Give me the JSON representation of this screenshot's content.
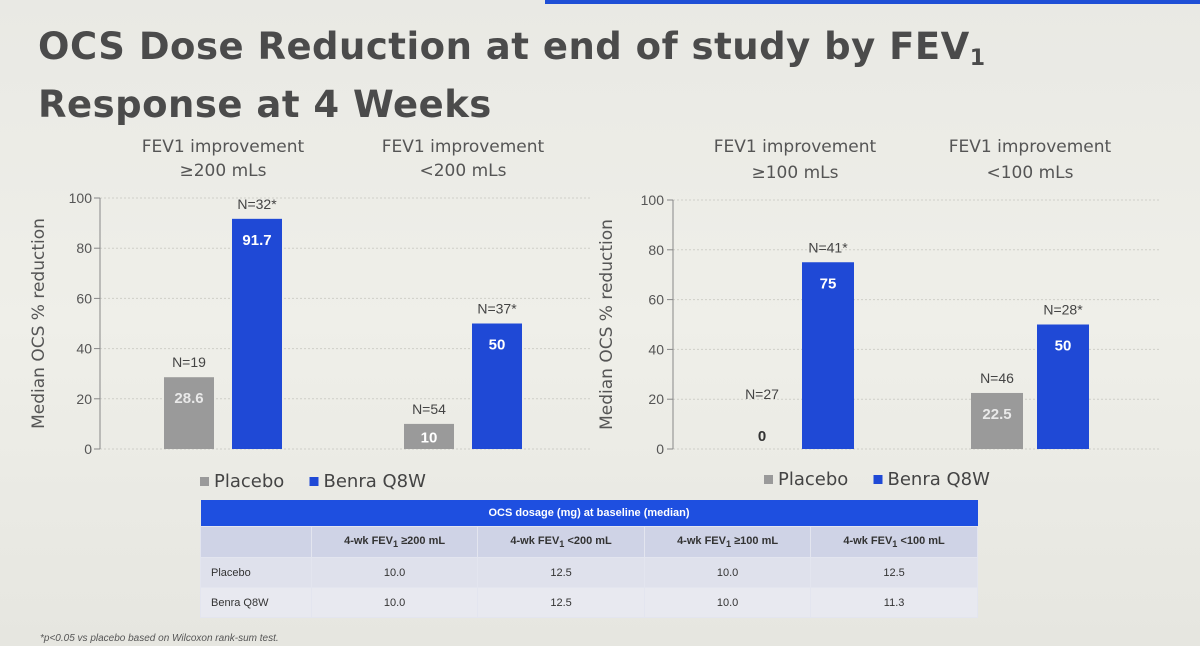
{
  "title_line1": "OCS Dose Reduction at end of study by FEV",
  "title_sub": "1",
  "title_line2": "Response at 4 Weeks",
  "chart_data": [
    {
      "type": "bar",
      "ylabel": "Median OCS % reduction",
      "ylim": [
        0,
        100
      ],
      "yticks": [
        0,
        20,
        40,
        60,
        80,
        100
      ],
      "grid": true,
      "legend": "bottom",
      "groups": [
        {
          "label_line1": "FEV1 improvement",
          "label_line2": "≥200 mLs",
          "bars": [
            {
              "series": "Placebo",
              "value": 28.6,
              "label": "28.6",
              "n": "N=19"
            },
            {
              "series": "Benra Q8W",
              "value": 91.7,
              "label": "91.7",
              "n": "N=32*"
            }
          ]
        },
        {
          "label_line1": "FEV1 improvement",
          "label_line2": "<200 mLs",
          "bars": [
            {
              "series": "Placebo",
              "value": 10,
              "label": "10",
              "n": "N=54"
            },
            {
              "series": "Benra Q8W",
              "value": 50,
              "label": "50",
              "n": "N=37*"
            }
          ]
        }
      ],
      "series": [
        {
          "name": "Placebo",
          "color": "#9a9a9a"
        },
        {
          "name": "Benra Q8W",
          "color": "#1f49d6"
        }
      ]
    },
    {
      "type": "bar",
      "ylabel": "Median OCS % reduction",
      "ylim": [
        0,
        100
      ],
      "yticks": [
        0,
        20,
        40,
        60,
        80,
        100
      ],
      "grid": true,
      "legend": "bottom",
      "groups": [
        {
          "label_line1": "FEV1 improvement",
          "label_line2": "≥100 mLs",
          "bars": [
            {
              "series": "Placebo",
              "value": 0,
              "label": "0",
              "n": "N=27"
            },
            {
              "series": "Benra Q8W",
              "value": 75,
              "label": "75",
              "n": "N=41*"
            }
          ]
        },
        {
          "label_line1": "FEV1 improvement",
          "label_line2": "<100 mLs",
          "bars": [
            {
              "series": "Placebo",
              "value": 22.5,
              "label": "22.5",
              "n": "N=46"
            },
            {
              "series": "Benra Q8W",
              "value": 50,
              "label": "50",
              "n": "N=28*"
            }
          ]
        }
      ],
      "series": [
        {
          "name": "Placebo",
          "color": "#9a9a9a"
        },
        {
          "name": "Benra Q8W",
          "color": "#1f49d6"
        }
      ]
    }
  ],
  "table": {
    "title": "OCS dosage (mg) at baseline (median)",
    "columns": [
      {
        "pre": "4-wk FEV",
        "sub": "1",
        "post": " ≥200 mL"
      },
      {
        "pre": "4-wk FEV",
        "sub": "1",
        "post": " <200 mL"
      },
      {
        "pre": "4-wk FEV",
        "sub": "1",
        "post": " ≥100 mL"
      },
      {
        "pre": "4-wk FEV",
        "sub": "1",
        "post": " <100 mL"
      }
    ],
    "rows": [
      {
        "label": "Placebo",
        "values": [
          "10.0",
          "12.5",
          "10.0",
          "12.5"
        ]
      },
      {
        "label": "Benra Q8W",
        "values": [
          "10.0",
          "12.5",
          "10.0",
          "11.3"
        ]
      }
    ]
  },
  "footnote": "*p<0.05 vs placebo based on Wilcoxon rank-sum test.",
  "colors": {
    "accent": "#1f49d6",
    "placebo": "#9a9a9a",
    "table_header": "#1e4fe0"
  }
}
